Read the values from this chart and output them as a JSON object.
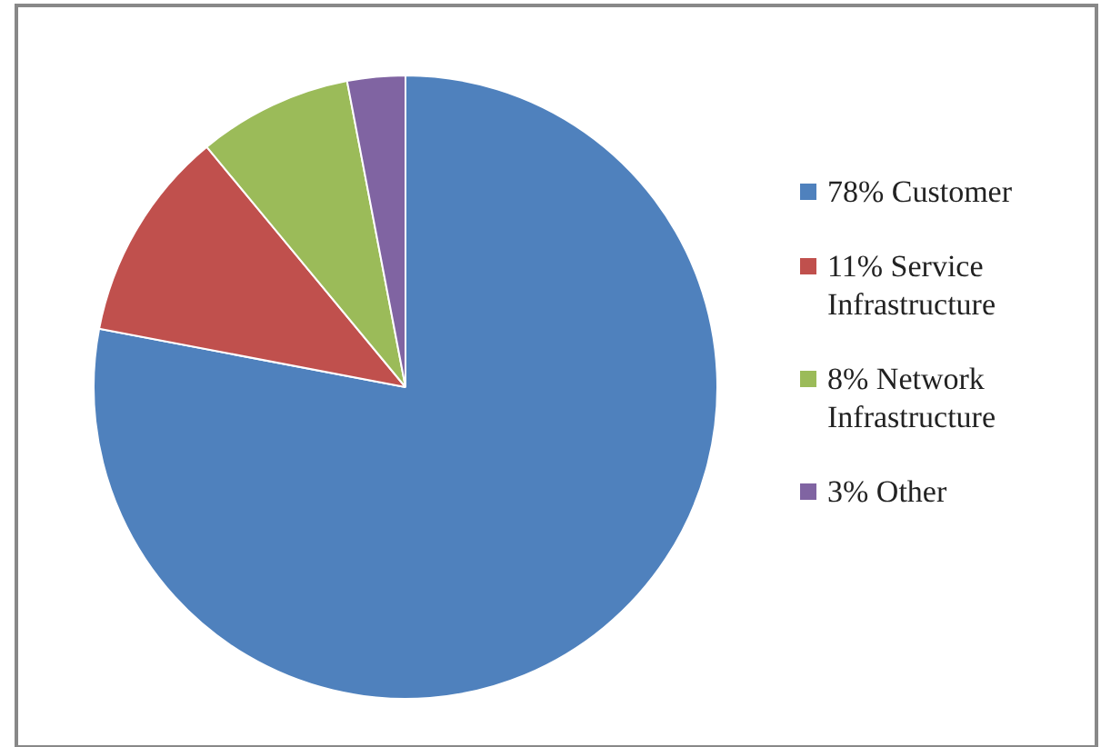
{
  "chart_data": {
    "type": "pie",
    "categories": [
      "78% Customer",
      "11% Service Infrastructure",
      "8% Network Infrastructure",
      "3% Other"
    ],
    "values": [
      78,
      11,
      8,
      3
    ],
    "colors": [
      "#4f81bd",
      "#c0504d",
      "#9bbb59",
      "#8064a2"
    ],
    "legend": "right"
  }
}
